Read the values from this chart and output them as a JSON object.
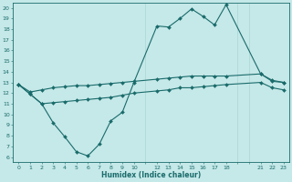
{
  "xlabel": "Humidex (Indice chaleur)",
  "bg_color": "#c5e8e8",
  "grid_color": "#a8d0d0",
  "line_color": "#1a6b6b",
  "ylim": [
    5.5,
    20.5
  ],
  "xlim": [
    -0.5,
    23.5
  ],
  "ytick_vals": [
    6,
    7,
    8,
    9,
    10,
    11,
    12,
    13,
    14,
    15,
    16,
    17,
    18,
    19,
    20
  ],
  "xtick_vals": [
    0,
    1,
    2,
    3,
    4,
    5,
    6,
    7,
    8,
    9,
    10,
    12,
    13,
    14,
    15,
    16,
    17,
    18,
    21,
    22,
    23
  ],
  "xtick_labels": [
    "0",
    "1",
    "2",
    "3",
    "4",
    "5",
    "6",
    "7",
    "8",
    "9",
    "10",
    "12",
    "13",
    "14",
    "15",
    "16",
    "17",
    "18",
    "21",
    "22",
    "23"
  ],
  "line1_x": [
    0,
    1,
    2,
    3,
    4,
    5,
    6,
    7,
    8,
    9,
    10,
    12,
    13,
    14,
    15,
    16,
    17,
    18,
    21,
    22,
    23
  ],
  "line1_y": [
    12.8,
    11.9,
    11.0,
    9.2,
    7.9,
    6.5,
    6.1,
    7.2,
    9.4,
    10.2,
    13.0,
    18.3,
    18.2,
    19.0,
    19.9,
    19.2,
    18.4,
    20.3,
    13.8,
    13.1,
    13.0
  ],
  "line2_x": [
    0,
    1,
    2,
    3,
    4,
    5,
    6,
    7,
    8,
    9,
    10,
    12,
    13,
    14,
    15,
    16,
    17,
    18,
    21,
    22,
    23
  ],
  "line2_y": [
    12.8,
    12.1,
    12.3,
    12.5,
    12.6,
    12.7,
    12.7,
    12.8,
    12.9,
    13.0,
    13.1,
    13.3,
    13.4,
    13.5,
    13.6,
    13.6,
    13.6,
    13.6,
    13.8,
    13.2,
    13.0
  ],
  "line3_x": [
    0,
    1,
    2,
    3,
    4,
    5,
    6,
    7,
    8,
    9,
    10,
    12,
    13,
    14,
    15,
    16,
    17,
    18,
    21,
    22,
    23
  ],
  "line3_y": [
    12.8,
    11.9,
    11.0,
    11.1,
    11.2,
    11.3,
    11.4,
    11.5,
    11.6,
    11.8,
    12.0,
    12.2,
    12.3,
    12.5,
    12.5,
    12.6,
    12.7,
    12.8,
    13.0,
    12.5,
    12.3
  ],
  "figsize": [
    3.2,
    2.0
  ],
  "dpi": 100
}
